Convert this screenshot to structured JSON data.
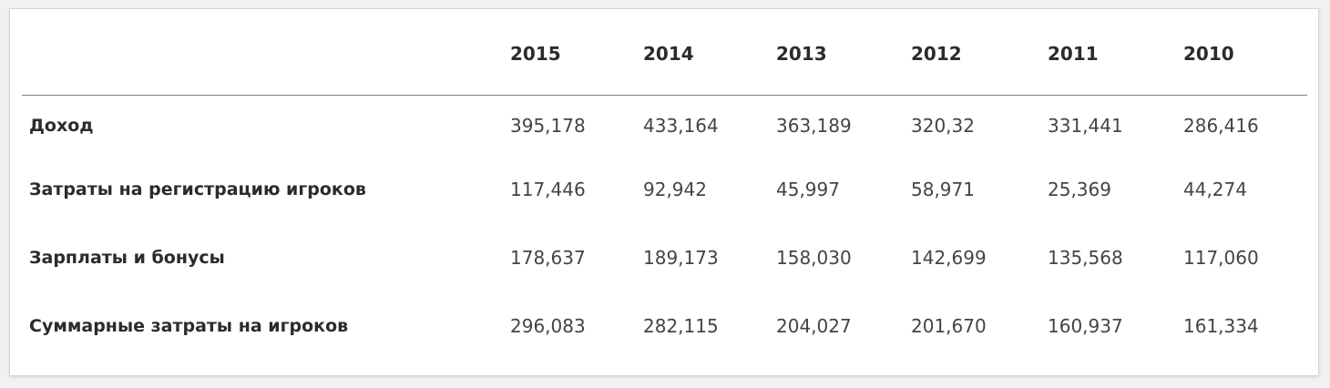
{
  "table": {
    "headers": [
      "",
      "2015",
      "2014",
      "2013",
      "2012",
      "2011",
      "2010"
    ],
    "rows": [
      {
        "label": "Доход",
        "values": [
          "395,178",
          "433,164",
          "363,189",
          "320,32",
          "331,441",
          "286,416"
        ]
      },
      {
        "label": "Затраты на регистрацию игроков",
        "values": [
          "117,446",
          "92,942",
          "45,997",
          "58,971",
          "25,369",
          "44,274"
        ]
      },
      {
        "label": "Зарплаты и бонусы",
        "values": [
          "178,637",
          "189,173",
          "158,030",
          "142,699",
          "135,568",
          "117,060"
        ]
      },
      {
        "label": "Суммарные затраты на игроков",
        "values": [
          "296,083",
          "282,115",
          "204,027",
          "201,670",
          "160,937",
          "161,334"
        ]
      }
    ]
  }
}
